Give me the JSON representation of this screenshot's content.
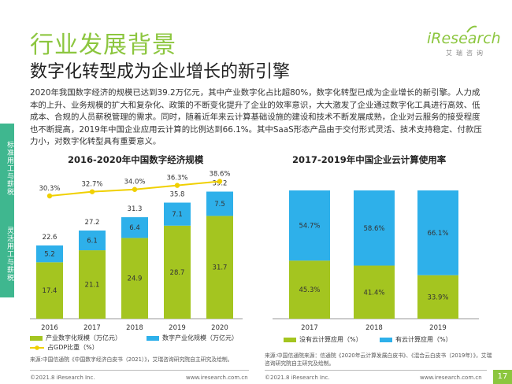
{
  "header": {
    "title": "行业发展背景",
    "subtitle": "数字化转型成为企业增长的新引擎"
  },
  "logo": {
    "name": "iResearch",
    "tagline": "艾瑞咨询"
  },
  "body_text": "2020年我国数字经济的规模已达到39.2万亿元，其中产业数字化占比超80%，数字化转型已成为企业增长的新引擎。人力成本的上升、业务规模的扩大和复杂化、政策的不断变化提升了企业的效率意识，大大激发了企业通过数字化工具进行高效、低成本、合规的人员薪税管理的需求。同时，随着近年来云计算基础设施的建设和技术不断发展成熟，企业对云服务的接受程度也不断提高，2019年中国企业应用云计算的比例达到66.1%。其中SaaS形态产品由于交付形式灵活、技术支持稳定、付款压力小，对数字化转型具有重要意义。",
  "side_tabs": [
    "标准用工与薪税",
    "灵活用工与薪税"
  ],
  "colors": {
    "green": "#a4c520",
    "blue": "#2eb0ea",
    "line": "#f0d000",
    "accent": "#8cc63f",
    "tab": "#3fb78f"
  },
  "chart_data": [
    {
      "type": "bar",
      "stacked": true,
      "title": "2016-2020年中国数字经济规模",
      "categories": [
        "2016",
        "2017",
        "2018",
        "2019",
        "2020"
      ],
      "series": [
        {
          "name": "产业数字化规模（万亿元）",
          "values": [
            17.4,
            21.1,
            24.9,
            28.7,
            31.7
          ]
        },
        {
          "name": "数字产业化规模（万亿元）",
          "values": [
            5.2,
            6.1,
            6.4,
            7.1,
            7.5
          ]
        }
      ],
      "totals": [
        22.6,
        27.2,
        31.3,
        35.8,
        39.2
      ],
      "line_series": {
        "name": "占GDP比重（%）",
        "values": [
          30.3,
          32.7,
          34.0,
          36.3,
          38.6
        ],
        "labels": [
          "30.3%",
          "32.7%",
          "34.0%",
          "36.3%",
          "38.6%"
        ]
      },
      "legend_position": "bottom"
    },
    {
      "type": "bar",
      "stacked": true,
      "percent": true,
      "title": "2017-2019年中国企业云计算使用率",
      "categories": [
        "2017",
        "2018",
        "2019"
      ],
      "series": [
        {
          "name": "没有云计算应用（%）",
          "values": [
            45.3,
            41.4,
            33.9
          ],
          "labels": [
            "45.3%",
            "41.4%",
            "33.9%"
          ]
        },
        {
          "name": "有云计算应用（%）",
          "values": [
            54.7,
            58.6,
            66.1
          ],
          "labels": [
            "54.7%",
            "58.6%",
            "66.1%"
          ]
        }
      ],
      "legend_position": "bottom"
    }
  ],
  "sources": {
    "left": "来源:中国信通院《中国数字经济白皮书（2021）》，艾瑞咨询研究院自主研究及绘制。",
    "right": "来源:中国信通院来源：信通院《2020年云计算发展白皮书》、《混合云白皮书（2019年）》，艾瑞咨询研究院自主研究及绘制。"
  },
  "footer": {
    "copyright_left": "©2021.8 iResearch Inc.",
    "url_left": "www.iresearch.com.cn",
    "copyright_right": "©2021.8 iResearch Inc.",
    "url_right": "www.iresearch.com.cn",
    "page": "17"
  }
}
